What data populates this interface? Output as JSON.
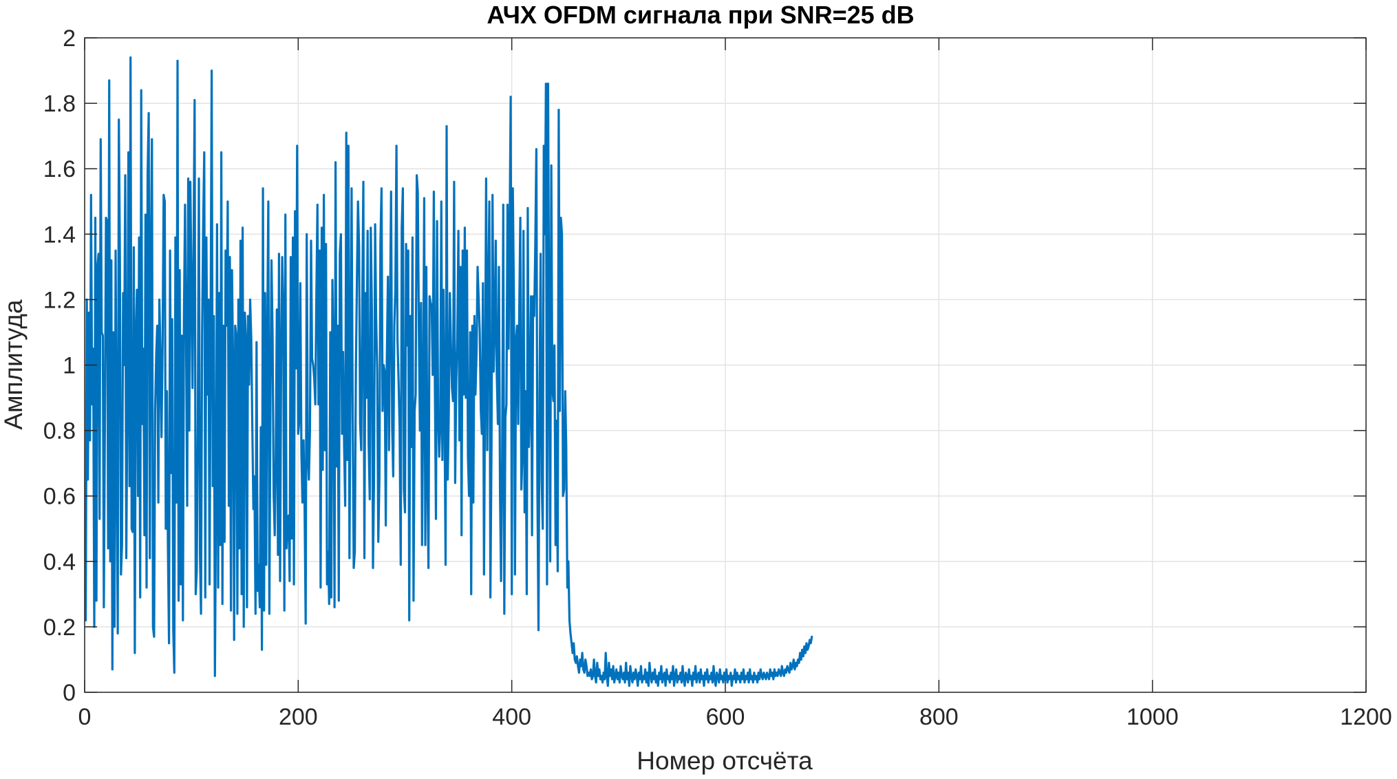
{
  "chart_data": {
    "type": "line",
    "title": "АЧХ OFDM сигнала при SNR=25 dB",
    "xlabel": "Номер отсчёта",
    "ylabel": "Амплитуда",
    "xlim": [
      0,
      1200
    ],
    "ylim": [
      0,
      2
    ],
    "grid": true,
    "x_ticks": [
      0,
      200,
      400,
      600,
      800,
      1000,
      1200
    ],
    "y_ticks": [
      0,
      0.2,
      0.4,
      0.6,
      0.8,
      1,
      1.2,
      1.4,
      1.6,
      1.8,
      2
    ],
    "x_tick_labels": [
      "0",
      "200",
      "400",
      "600",
      "800",
      "1000",
      "1200"
    ],
    "y_tick_labels": [
      "0",
      "0.2",
      "0.4",
      "0.6",
      "0.8",
      "1",
      "1.2",
      "1.4",
      "1.6",
      "1.8",
      "2"
    ],
    "series": [
      {
        "color": "#0072BD",
        "x_start": 1,
        "x_step": 1,
        "values": [
          0.22,
          1.2,
          0.65,
          1.16,
          0.77,
          1.52,
          0.88,
          1.05,
          0.2,
          1.45,
          0.28,
          1.3,
          1.34,
          0.53,
          1.69,
          1.1,
          1.09,
          0.26,
          0.85,
          1.45,
          1.44,
          0.44,
          1.87,
          0.4,
          1.32,
          0.07,
          1.1,
          0.2,
          1.35,
          0.7,
          0.18,
          1.75,
          1.33,
          0.36,
          0.45,
          1.22,
          1.0,
          1.58,
          0.41,
          0.9,
          1.65,
          0.63,
          1.94,
          0.5,
          0.49,
          1.36,
          0.12,
          1.1,
          1.23,
          0.6,
          1.39,
          0.29,
          1.84,
          0.82,
          1.05,
          0.48,
          1.46,
          0.32,
          1.58,
          1.77,
          0.41,
          1.31,
          1.69,
          0.2,
          0.17,
          0.86,
          1.03,
          1.12,
          0.58,
          1.2,
          1.02,
          0.78,
          1.07,
          1.52,
          1.5,
          0.5,
          0.92,
          0.45,
          0.15,
          1.35,
          0.67,
          1.14,
          0.19,
          0.06,
          1.39,
          0.58,
          1.93,
          0.28,
          1.29,
          0.33,
          1.09,
          0.22,
          1.15,
          1.49,
          1.08,
          0.57,
          1.57,
          0.8,
          1.56,
          1.25,
          0.93,
          1.36,
          1.81,
          0.3,
          0.37,
          0.84,
          1.57,
          0.42,
          0.24,
          1.1,
          1.42,
          1.65,
          0.29,
          1.39,
          0.91,
          1.2,
          0.33,
          1.13,
          1.9,
          0.63,
          1.15,
          0.05,
          0.6,
          1.43,
          0.32,
          1.22,
          0.45,
          1.65,
          0.27,
          1.12,
          0.46,
          1.35,
          1.12,
          1.5,
          0.57,
          1.33,
          0.25,
          1.29,
          1.0,
          0.16,
          1.12,
          1.09,
          0.24,
          1.2,
          0.44,
          1.38,
          0.3,
          1.42,
          0.2,
          1.16,
          1.08,
          0.26,
          1.15,
          0.94,
          1.2,
          1.08,
          0.82,
          0.56,
          0.66,
          0.24,
          1.07,
          0.31,
          0.39,
          0.26,
          0.81,
          0.13,
          1.54,
          0.25,
          1.22,
          0.39,
          1.08,
          1.5,
          0.24,
          0.9,
          1.32,
          1.09,
          0.61,
          0.48,
          0.72,
          1.17,
          0.42,
          1.34,
          0.34,
          1.01,
          1.33,
          1.17,
          0.25,
          1.46,
          0.44,
          0.53,
          0.54,
          0.34,
          1.33,
          0.47,
          1.39,
          0.33,
          1.47,
          0.99,
          1.67,
          0.79,
          0.83,
          1.25,
          0.73,
          0.58,
          0.77,
          0.57,
          0.21,
          1.4,
          0.72,
          0.65,
          0.8,
          1.38,
          1.02,
          1.0,
          0.96,
          0.88,
          1.21,
          1.49,
          0.88,
          1.35,
          0.32,
          1.42,
          0.68,
          1.52,
          0.74,
          1.37,
          0.33,
          0.43,
          0.27,
          1.1,
          0.29,
          1.26,
          1.04,
          0.26,
          1.62,
          0.69,
          1.12,
          0.28,
          1.34,
          1.4,
          0.79,
          1.04,
          0.75,
          0.57,
          1.71,
          0.71,
          1.67,
          0.41,
          1.03,
          1.54,
          0.85,
          0.38,
          0.43,
          0.98,
          1.27,
          1.5,
          1.36,
          0.82,
          0.74,
          1.18,
          1.56,
          0.41,
          1.22,
          0.9,
          1.41,
          0.76,
          0.59,
          1.42,
          1.17,
          0.38,
          0.65,
          1.43,
          1.14,
          0.98,
          0.46,
          0.65,
          1.37,
          1.54,
          0.86,
          1.0,
          0.98,
          0.51,
          1.01,
          1.27,
          0.74,
          1.17,
          1.53,
          0.81,
          0.66,
          1.12,
          1.23,
          1.67,
          1.08,
          0.95,
          0.81,
          0.39,
          1.42,
          1.54,
          0.62,
          0.55,
          1.37,
          1.06,
          1.35,
          0.22,
          1.15,
          0.75,
          1.39,
          0.28,
          0.86,
          0.91,
          1.58,
          1.53,
          1.1,
          0.8,
          1.19,
          0.45,
          0.9,
          1.51,
          0.45,
          1.3,
          0.67,
          0.38,
          1.21,
          1.19,
          1.18,
          0.97,
          1.53,
          0.95,
          0.53,
          1.44,
          0.85,
          0.72,
          0.81,
          1.5,
          0.71,
          1.23,
          0.87,
          0.39,
          1.73,
          0.65,
          0.85,
          1.22,
          1.07,
          0.93,
          0.89,
          1.56,
          0.64,
          0.95,
          1.08,
          1.41,
          0.77,
          1.3,
          0.48,
          1.35,
          0.91,
          1.42,
          0.9,
          1.35,
          0.72,
          0.6,
          1.1,
          0.3,
          1.12,
          0.58,
          1.15,
          0.91,
          1.04,
          1.3,
          1.2,
          1.1,
          0.86,
          0.79,
          1.25,
          0.36,
          0.95,
          1.57,
          0.74,
          1.23,
          1.5,
          0.29,
          0.75,
          1.52,
          0.98,
          1.1,
          1.38,
          0.97,
          0.82,
          1.3,
          0.61,
          0.34,
          0.71,
          1.49,
          0.24,
          0.84,
          0.88,
          1.49,
          1.05,
          1.41,
          1.82,
          0.3,
          1.54,
          1.2,
          0.36,
          1.08,
          1.12,
          0.82,
          1.16,
          1.45,
          0.62,
          0.73,
          1.41,
          0.55,
          0.92,
          0.3,
          1.48,
          0.75,
          0.88,
          1.21,
          0.48,
          1.21,
          1.15,
          1.36,
          1.66,
          0.63,
          0.19,
          0.91,
          1.34,
          0.65,
          0.5,
          1.67,
          1.4,
          1.86,
          0.33,
          1.86,
          1.1,
          0.4,
          1.61,
          0.93,
          0.89,
          1.06,
          0.45,
          0.83,
          0.37,
          1.78,
          0.86,
          1.45,
          1.4,
          0.6,
          0.62,
          0.92,
          0.75,
          0.32,
          0.4,
          0.22,
          0.18,
          0.15,
          0.12,
          0.15,
          0.1,
          0.09,
          0.11,
          0.08,
          0.06,
          0.1,
          0.08,
          0.12,
          0.07,
          0.06,
          0.1,
          0.08,
          0.05,
          0.06,
          0.05,
          0.07,
          0.04,
          0.05,
          0.1,
          0.05,
          0.03,
          0.09,
          0.05,
          0.07,
          0.04,
          0.05,
          0.03,
          0.06,
          0.04,
          0.12,
          0.05,
          0.02,
          0.09,
          0.05,
          0.07,
          0.04,
          0.08,
          0.03,
          0.05,
          0.07,
          0.04,
          0.06,
          0.03,
          0.08,
          0.05,
          0.04,
          0.06,
          0.03,
          0.09,
          0.04,
          0.06,
          0.02,
          0.08,
          0.05,
          0.03,
          0.06,
          0.04,
          0.07,
          0.05,
          0.02,
          0.06,
          0.04,
          0.08,
          0.03,
          0.05,
          0.04,
          0.07,
          0.03,
          0.06,
          0.02,
          0.09,
          0.05,
          0.03,
          0.06,
          0.04,
          0.07,
          0.03,
          0.05,
          0.02,
          0.06,
          0.04,
          0.08,
          0.03,
          0.05,
          0.06,
          0.02,
          0.07,
          0.04,
          0.05,
          0.03,
          0.06,
          0.04,
          0.08,
          0.02,
          0.05,
          0.07,
          0.03,
          0.05,
          0.04,
          0.06,
          0.03,
          0.08,
          0.04,
          0.02,
          0.06,
          0.05,
          0.03,
          0.07,
          0.04,
          0.05,
          0.02,
          0.06,
          0.04,
          0.08,
          0.03,
          0.05,
          0.06,
          0.03,
          0.07,
          0.04,
          0.05,
          0.02,
          0.06,
          0.04,
          0.07,
          0.03,
          0.05,
          0.04,
          0.06,
          0.03,
          0.08,
          0.04,
          0.02,
          0.06,
          0.05,
          0.03,
          0.07,
          0.04,
          0.05,
          0.03,
          0.06,
          0.04,
          0.07,
          0.03,
          0.05,
          0.04,
          0.06,
          0.02,
          0.05,
          0.04,
          0.07,
          0.03,
          0.06,
          0.04,
          0.05,
          0.03,
          0.06,
          0.04,
          0.07,
          0.03,
          0.05,
          0.04,
          0.06,
          0.03,
          0.07,
          0.04,
          0.05,
          0.03,
          0.06,
          0.04,
          0.05,
          0.03,
          0.06,
          0.04,
          0.07,
          0.05,
          0.04,
          0.06,
          0.05,
          0.04,
          0.06,
          0.05,
          0.04,
          0.07,
          0.05,
          0.06,
          0.04,
          0.07,
          0.05,
          0.06,
          0.05,
          0.07,
          0.06,
          0.05,
          0.08,
          0.06,
          0.05,
          0.07,
          0.06,
          0.08,
          0.07,
          0.06,
          0.09,
          0.07,
          0.08,
          0.1,
          0.07,
          0.09,
          0.08,
          0.1,
          0.09,
          0.12,
          0.1,
          0.13,
          0.11,
          0.14,
          0.12,
          0.15,
          0.13,
          0.14,
          0.16,
          0.15,
          0.17
        ]
      }
    ]
  }
}
